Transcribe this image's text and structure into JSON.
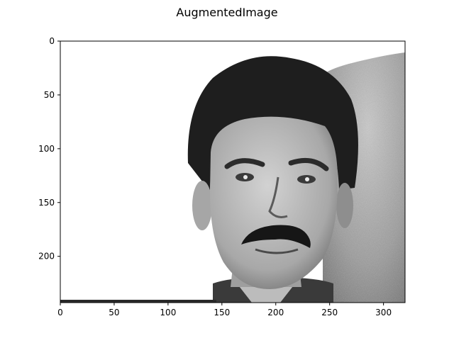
{
  "figure": {
    "title": "AugmentedImage"
  },
  "image": {
    "description_tags": [
      "grayscale",
      "portrait",
      "face",
      "mustache",
      "dark-hair"
    ],
    "background_color": "#ffffff",
    "wall_color": "#9a9a9a",
    "hair_color": "#1f1f1f",
    "skin_color": "#b3b3b3"
  },
  "axes": {
    "x_ticks": [
      0,
      50,
      100,
      150,
      200,
      250,
      300
    ],
    "y_ticks": [
      0,
      50,
      100,
      150,
      200
    ],
    "xlim": [
      0,
      320
    ],
    "ylim": [
      243,
      0
    ]
  }
}
